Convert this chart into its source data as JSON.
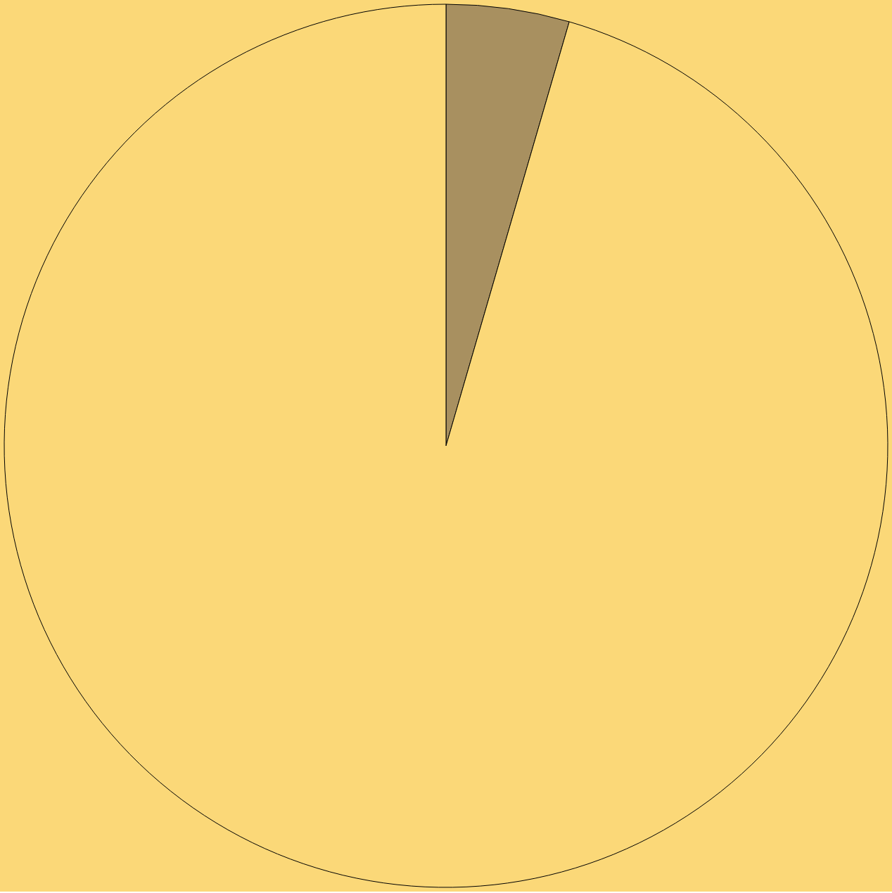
{
  "chart_data": {
    "type": "pie",
    "categories": [
      null,
      null
    ],
    "values": [
      4.5,
      95.5
    ],
    "colors": [
      "#a89060",
      "#fbd878"
    ],
    "legend": false
  }
}
